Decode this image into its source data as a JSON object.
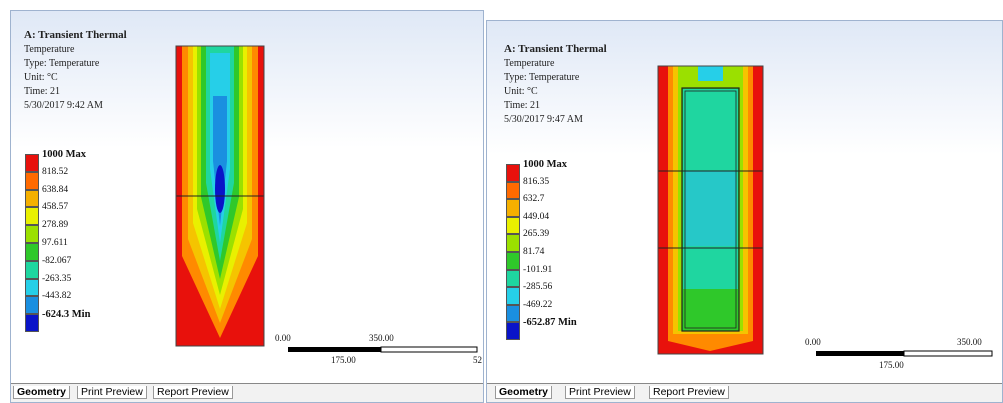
{
  "panels": [
    {
      "title": "A: Transient Thermal",
      "lines": [
        "Temperature",
        "Type: Temperature",
        "Unit: °C",
        "Time: 21",
        "5/30/2017 9:42 AM"
      ],
      "legend": [
        "1000 Max",
        "818.52",
        "638.84",
        "458.57",
        "278.89",
        "97.611",
        "-82.067",
        "-263.35",
        "-443.82",
        "-624.3 Min"
      ],
      "scale": [
        "0.00",
        "350.00",
        "175.00",
        "52"
      ],
      "tabs": [
        "Geometry",
        "Print Preview",
        "Report Preview"
      ]
    },
    {
      "title": "A: Transient Thermal",
      "lines": [
        "Temperature",
        "Type: Temperature",
        "Unit: °C",
        "Time: 21",
        "5/30/2017 9:47 AM"
      ],
      "legend": [
        "1000 Max",
        "816.35",
        "632.7",
        "449.04",
        "265.39",
        "81.74",
        "-101.91",
        "-285.56",
        "-469.22",
        "-652.87 Min"
      ],
      "scale": [
        "0.00",
        "350.00",
        "175.00"
      ],
      "tabs": [
        "Geometry",
        "Print Preview",
        "Report Preview"
      ]
    }
  ]
}
